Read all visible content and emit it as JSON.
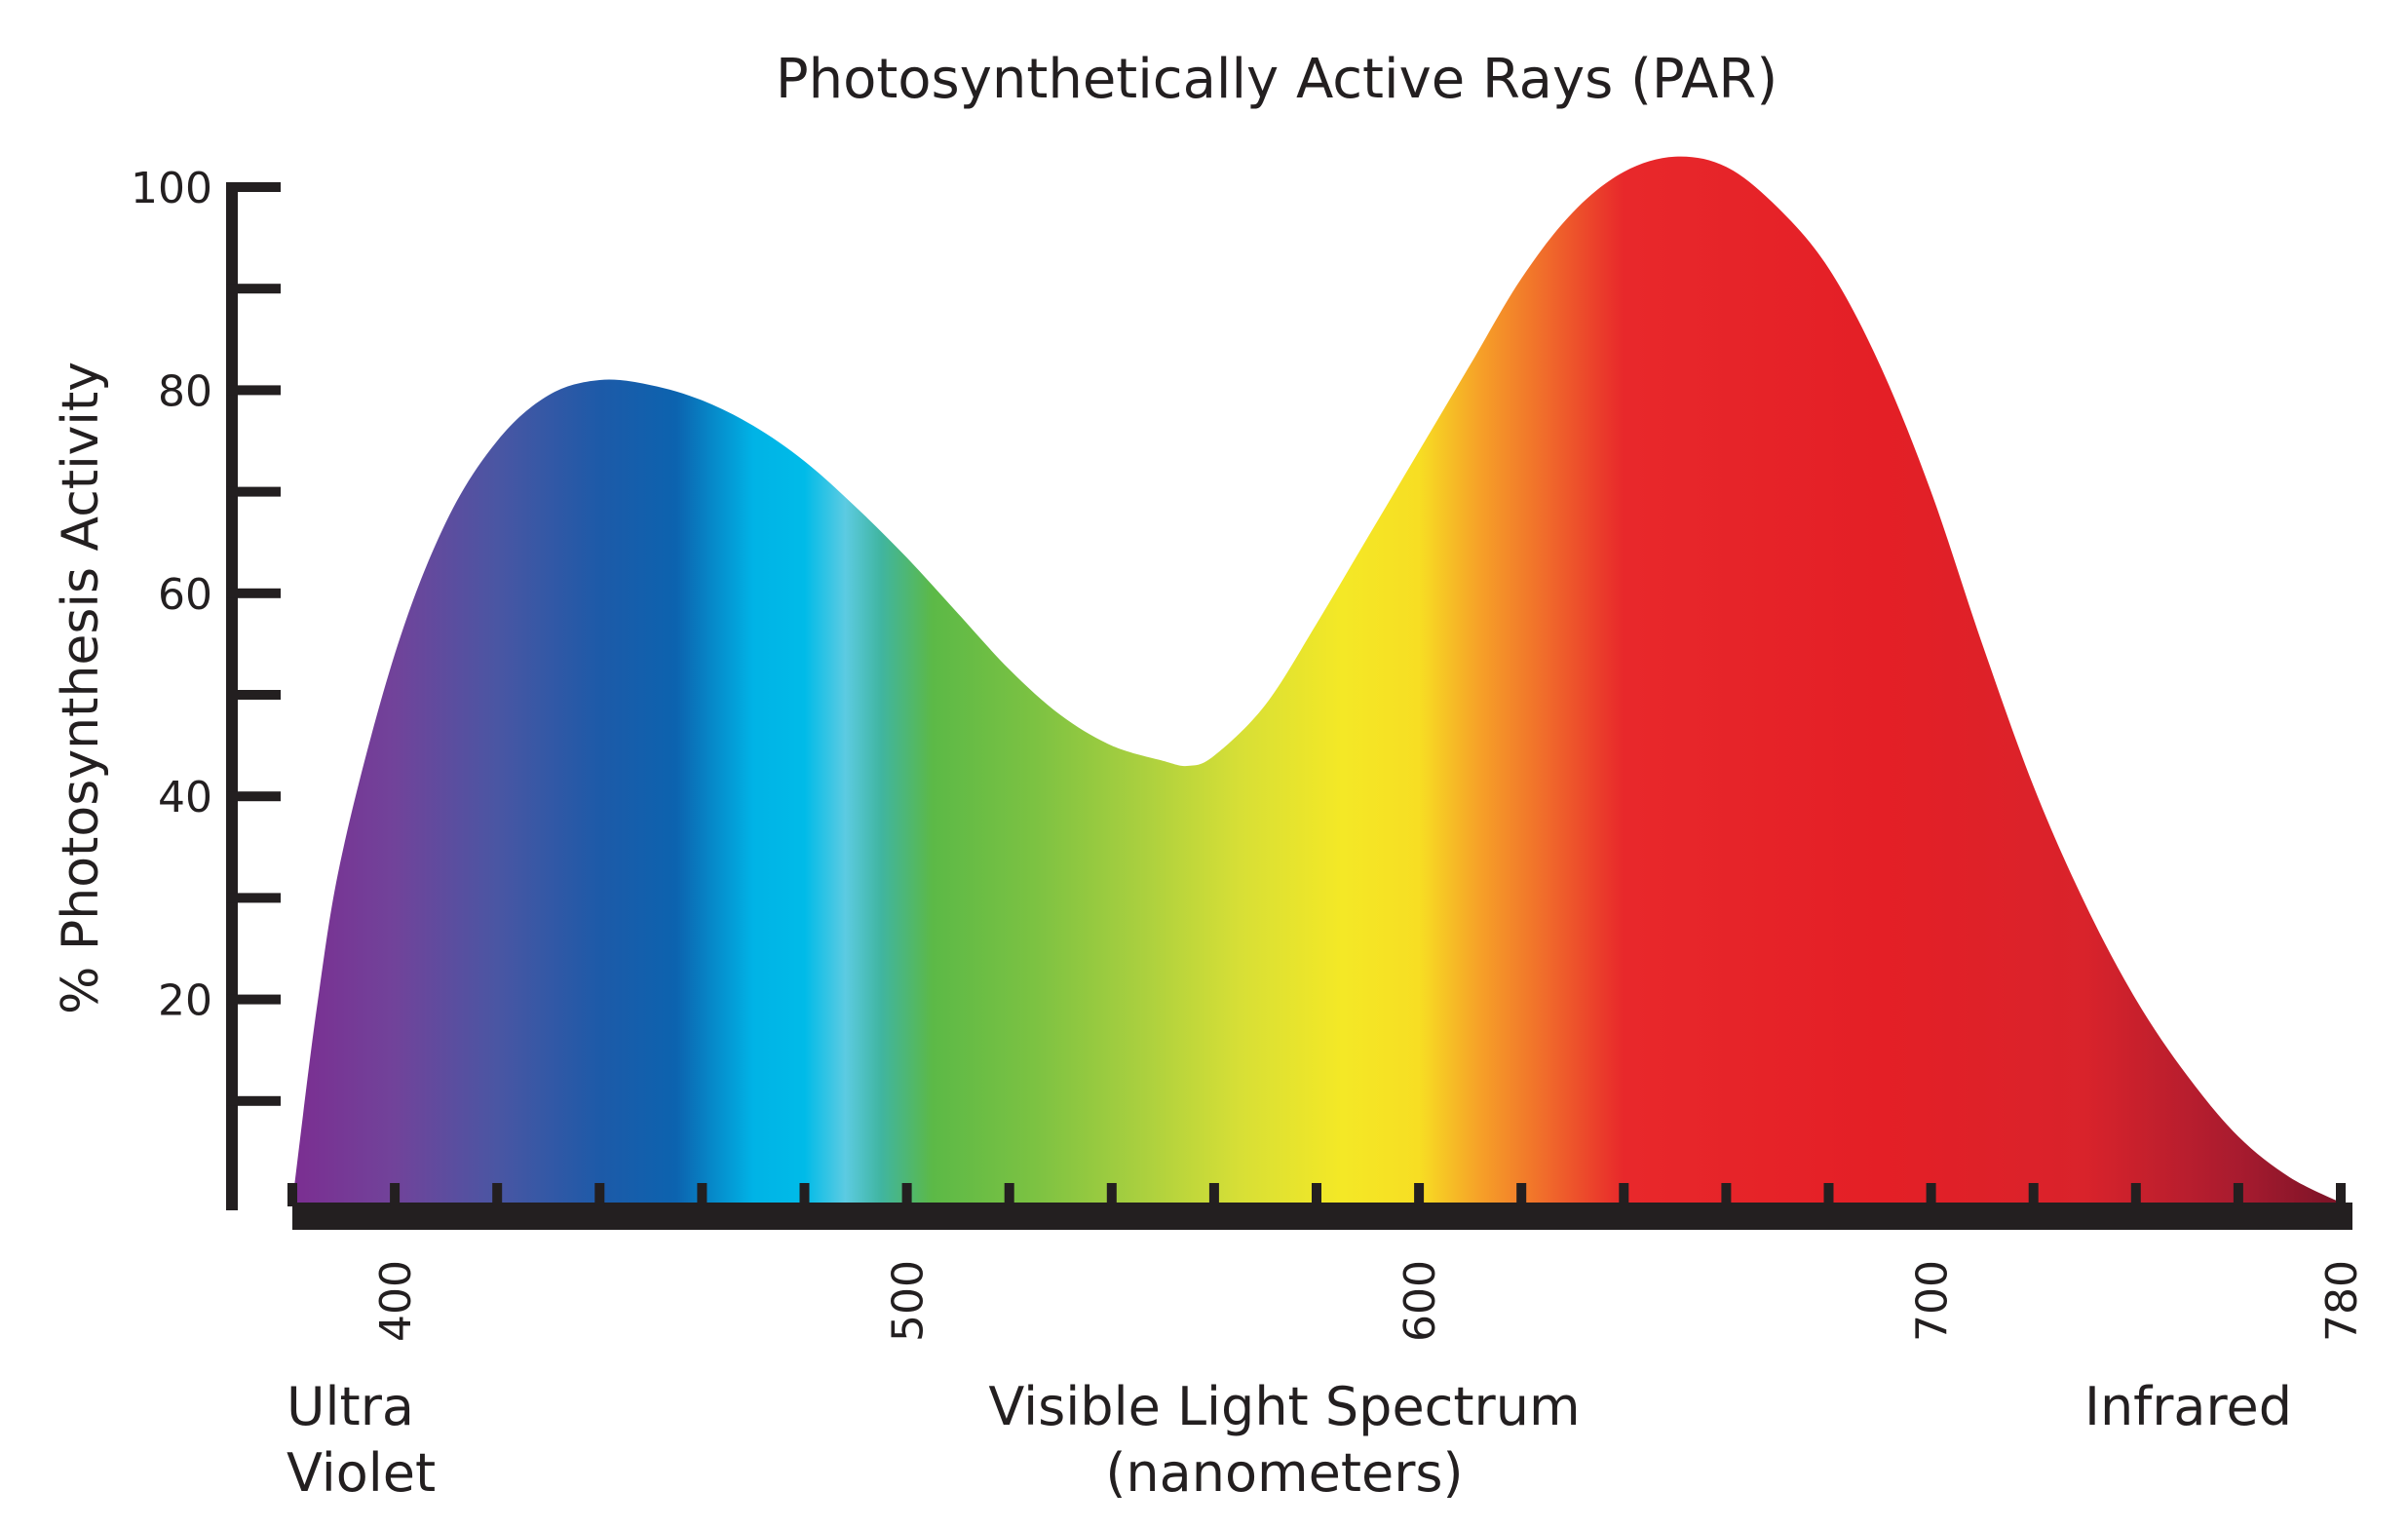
{
  "chart_data": {
    "type": "area",
    "title": "Photosynthetically Active Rays (PAR)",
    "ylabel": "% Photosynthesis Activity",
    "xlabel_lines": [
      "Visible Light Spectrum",
      "(nanometers)"
    ],
    "left_label_lines": [
      "Ultra",
      "Violet"
    ],
    "right_label": "Infrared",
    "xlim": [
      380,
      780
    ],
    "ylim": [
      0,
      100
    ],
    "x_tick_labels": [
      400,
      500,
      600,
      700,
      780
    ],
    "x_minor_step": 20,
    "y_tick_labels": [
      20,
      40,
      60,
      80,
      100
    ],
    "y_minor_step": 10,
    "grid": false,
    "legend": "none",
    "axis_color": "#231f20",
    "x": [
      380,
      385,
      390,
      400,
      410,
      420,
      430,
      440,
      450,
      460,
      470,
      480,
      490,
      500,
      510,
      520,
      530,
      540,
      550,
      555,
      560,
      570,
      580,
      590,
      600,
      610,
      620,
      630,
      640,
      650,
      660,
      670,
      680,
      690,
      700,
      710,
      720,
      730,
      740,
      750,
      760,
      770,
      780
    ],
    "y": [
      0,
      20,
      35,
      54,
      67,
      75,
      79.5,
      81,
      80.5,
      79,
      76.5,
      73,
      68.5,
      63.5,
      58,
      52.5,
      48,
      45,
      43.5,
      43,
      44,
      49,
      57,
      65.5,
      74,
      82.5,
      91,
      97.5,
      101.5,
      103,
      102,
      98,
      92,
      82.5,
      70,
      55,
      41,
      29.5,
      20,
      12.5,
      6.5,
      2.5,
      0
    ],
    "spectrum_stops": [
      {
        "nm": 380,
        "color": "#7b2e91"
      },
      {
        "nm": 400,
        "color": "#71439a"
      },
      {
        "nm": 420,
        "color": "#4a56a3"
      },
      {
        "nm": 440,
        "color": "#1d5aa8"
      },
      {
        "nm": 455,
        "color": "#0c63af"
      },
      {
        "nm": 470,
        "color": "#00b3e6"
      },
      {
        "nm": 480,
        "color": "#00bbe8"
      },
      {
        "nm": 488,
        "color": "#5ccbe2"
      },
      {
        "nm": 495,
        "color": "#40b5a0"
      },
      {
        "nm": 505,
        "color": "#5cb947"
      },
      {
        "nm": 525,
        "color": "#7cc242"
      },
      {
        "nm": 545,
        "color": "#a8cf3f"
      },
      {
        "nm": 565,
        "color": "#d7df36"
      },
      {
        "nm": 585,
        "color": "#f4e826"
      },
      {
        "nm": 600,
        "color": "#f7de23"
      },
      {
        "nm": 612,
        "color": "#f6a028"
      },
      {
        "nm": 625,
        "color": "#f06a2b"
      },
      {
        "nm": 640,
        "color": "#e8282b"
      },
      {
        "nm": 690,
        "color": "#e41f26"
      },
      {
        "nm": 730,
        "color": "#d9232b"
      },
      {
        "nm": 760,
        "color": "#a81b2f"
      },
      {
        "nm": 780,
        "color": "#7a1327"
      }
    ]
  }
}
